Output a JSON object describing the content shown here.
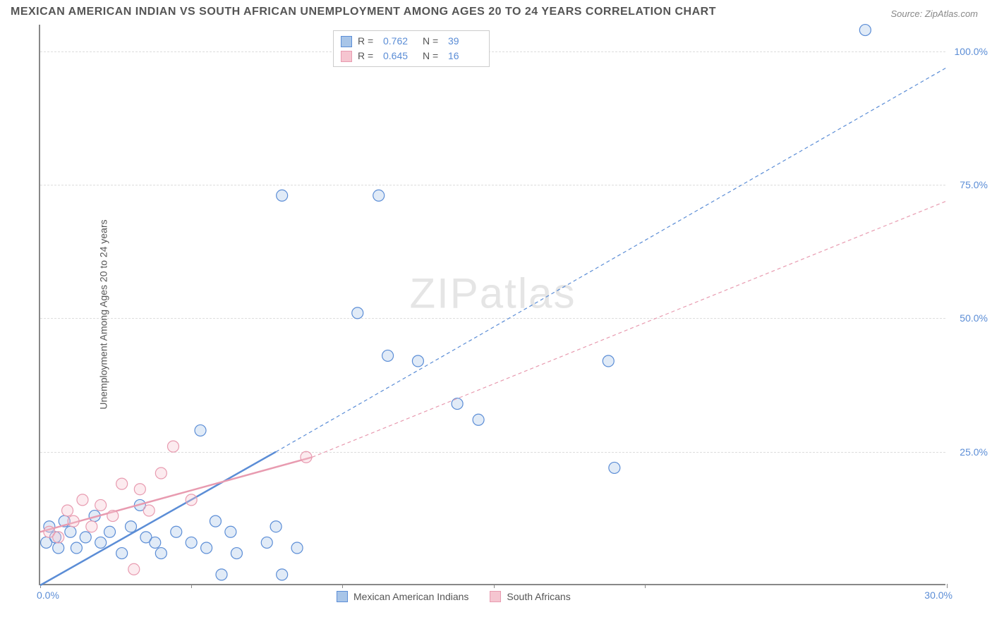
{
  "title": "MEXICAN AMERICAN INDIAN VS SOUTH AFRICAN UNEMPLOYMENT AMONG AGES 20 TO 24 YEARS CORRELATION CHART",
  "source_label": "Source: ZipAtlas.com",
  "y_axis_label": "Unemployment Among Ages 20 to 24 years",
  "watermark": "ZIPatlas",
  "chart": {
    "type": "scatter",
    "xlim": [
      0,
      30
    ],
    "ylim": [
      0,
      105
    ],
    "x_ticks": [
      0,
      5,
      10,
      15,
      20,
      30
    ],
    "x_tick_labels_shown": {
      "left": "0.0%",
      "right": "30.0%"
    },
    "y_ticks": [
      25,
      50,
      75,
      100
    ],
    "y_tick_labels": [
      "25.0%",
      "50.0%",
      "75.0%",
      "100.0%"
    ],
    "grid_color": "#dddddd",
    "axis_color": "#888888",
    "background_color": "#ffffff",
    "marker_radius": 8,
    "marker_stroke_width": 1.2,
    "marker_fill_opacity": 0.35,
    "line_width_solid": 2.5,
    "line_width_dash": 1.2,
    "dash_pattern": "5,4"
  },
  "series": [
    {
      "name": "Mexican American Indians",
      "color_fill": "#a8c5e8",
      "color_stroke": "#5b8dd6",
      "r_value": "0.762",
      "n_value": "39",
      "trend_solid": {
        "x1": 0,
        "y1": 0,
        "x2": 7.8,
        "y2": 25
      },
      "trend_dash": {
        "x1": 7.8,
        "y1": 25,
        "x2": 30,
        "y2": 97
      },
      "points": [
        [
          0.2,
          8
        ],
        [
          0.3,
          11
        ],
        [
          0.5,
          9
        ],
        [
          0.6,
          7
        ],
        [
          0.8,
          12
        ],
        [
          1.0,
          10
        ],
        [
          1.2,
          7
        ],
        [
          1.5,
          9
        ],
        [
          1.8,
          13
        ],
        [
          2.0,
          8
        ],
        [
          2.3,
          10
        ],
        [
          2.7,
          6
        ],
        [
          3.0,
          11
        ],
        [
          3.3,
          15
        ],
        [
          3.5,
          9
        ],
        [
          3.8,
          8
        ],
        [
          4.0,
          6
        ],
        [
          4.5,
          10
        ],
        [
          5.0,
          8
        ],
        [
          5.3,
          29
        ],
        [
          5.5,
          7
        ],
        [
          5.8,
          12
        ],
        [
          6.0,
          2
        ],
        [
          6.3,
          10
        ],
        [
          6.5,
          6
        ],
        [
          7.5,
          8
        ],
        [
          7.8,
          11
        ],
        [
          8.0,
          2
        ],
        [
          8.0,
          73
        ],
        [
          8.5,
          7
        ],
        [
          10.5,
          51
        ],
        [
          11.2,
          73
        ],
        [
          11.5,
          43
        ],
        [
          12.5,
          42
        ],
        [
          13.8,
          34
        ],
        [
          14.5,
          31
        ],
        [
          18.8,
          42
        ],
        [
          19.0,
          22
        ],
        [
          27.3,
          104
        ]
      ]
    },
    {
      "name": "South Africans",
      "color_fill": "#f5c5d0",
      "color_stroke": "#e89bb0",
      "r_value": "0.645",
      "n_value": "16",
      "trend_solid": {
        "x1": 0,
        "y1": 10,
        "x2": 9.0,
        "y2": 24
      },
      "trend_dash": {
        "x1": 9.0,
        "y1": 24,
        "x2": 30,
        "y2": 72
      },
      "points": [
        [
          0.3,
          10
        ],
        [
          0.6,
          9
        ],
        [
          0.9,
          14
        ],
        [
          1.1,
          12
        ],
        [
          1.4,
          16
        ],
        [
          1.7,
          11
        ],
        [
          2.0,
          15
        ],
        [
          2.4,
          13
        ],
        [
          2.7,
          19
        ],
        [
          3.1,
          3
        ],
        [
          3.3,
          18
        ],
        [
          3.6,
          14
        ],
        [
          4.0,
          21
        ],
        [
          4.4,
          26
        ],
        [
          5.0,
          16
        ],
        [
          8.8,
          24
        ]
      ]
    }
  ],
  "legend_top": {
    "r_label": "R =",
    "n_label": "N ="
  },
  "legend_bottom": [
    {
      "label": "Mexican American Indians",
      "fill": "#a8c5e8",
      "stroke": "#5b8dd6"
    },
    {
      "label": "South Africans",
      "fill": "#f5c5d0",
      "stroke": "#e89bb0"
    }
  ],
  "stat_value_color": "#5b8dd6"
}
